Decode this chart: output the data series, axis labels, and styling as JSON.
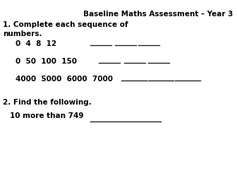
{
  "bg_color": "#ffffff",
  "title": "Baseline Maths Assessment – Year 3",
  "title_fontsize": 7.5,
  "title_fontweight": "bold",
  "section1_label": "1. Complete each sequence of\nnumbers.",
  "section1_fontsize": 7.5,
  "section1_fontweight": "bold",
  "seq_texts": [
    "0  4  8  12",
    "0  50  100  150",
    "4000  5000  6000  7000"
  ],
  "seq_fontsize": 7.5,
  "seq_fontweight": "bold",
  "section2_label": "2. Find the following.",
  "section2_fontsize": 7.5,
  "section2_fontweight": "bold",
  "item1_text": "10 more than 749",
  "item1_fontsize": 7.5,
  "item1_fontweight": "bold",
  "line_color": "#222222",
  "line_width": 1.0
}
